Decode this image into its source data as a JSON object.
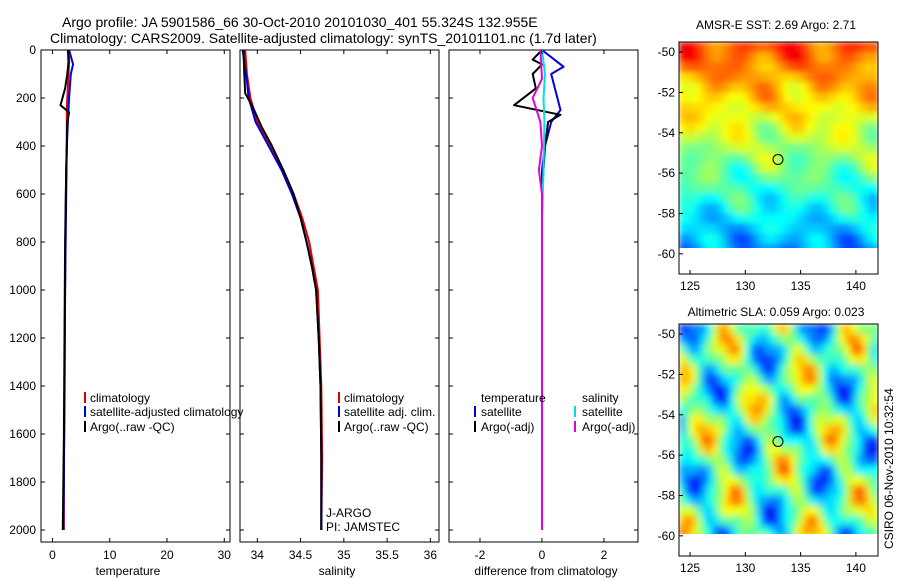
{
  "header": {
    "line1": "Argo profile: JA 5901586_66 30-Oct-2010 20101030_401 55.324S 132.955E",
    "line2": "Climatology: CARS2009. Satellite-adjusted climatology: synTS_20101101.nc (1.7d later)"
  },
  "colors": {
    "red": "#e00000",
    "blue": "#0000e0",
    "black": "#000000",
    "cyan": "#00e0e0",
    "magenta": "#e000e0"
  },
  "chart_data": [
    {
      "type": "line",
      "name": "temperature-profile",
      "xlabel": "temperature",
      "xlim": [
        -2,
        31
      ],
      "ylim": [
        2050,
        0
      ],
      "yticks": [
        0,
        200,
        400,
        600,
        800,
        1000,
        1200,
        1400,
        1600,
        1800,
        2000
      ],
      "xticks": [
        0,
        10,
        20,
        30
      ],
      "series": [
        {
          "name": "climatology",
          "color": "red",
          "points": [
            [
              2.9,
              0
            ],
            [
              2.9,
              50
            ],
            [
              2.8,
              100
            ],
            [
              2.7,
              150
            ],
            [
              2.6,
              200
            ],
            [
              2.5,
              250
            ],
            [
              2.5,
              300
            ],
            [
              2.5,
              400
            ],
            [
              2.4,
              500
            ],
            [
              2.3,
              700
            ],
            [
              2.2,
              1000
            ],
            [
              2.1,
              1500
            ],
            [
              2.0,
              1700
            ],
            [
              2.0,
              2000
            ]
          ]
        },
        {
          "name": "satellite-adjusted climatology",
          "color": "blue",
          "points": [
            [
              2.9,
              0
            ],
            [
              3.6,
              60
            ],
            [
              3.2,
              100
            ],
            [
              2.9,
              200
            ],
            [
              2.7,
              300
            ],
            [
              2.5,
              400
            ],
            [
              2.4,
              600
            ],
            [
              2.2,
              1000
            ],
            [
              2.1,
              1400
            ],
            [
              2.0,
              1800
            ],
            [
              1.9,
              2000
            ]
          ]
        },
        {
          "name": "Argo(..raw -QC)",
          "color": "black",
          "points": [
            [
              2.7,
              0
            ],
            [
              2.8,
              50
            ],
            [
              2.6,
              100
            ],
            [
              2.2,
              160
            ],
            [
              1.4,
              230
            ],
            [
              2.9,
              260
            ],
            [
              2.6,
              300
            ],
            [
              2.5,
              400
            ],
            [
              2.4,
              500
            ],
            [
              2.2,
              800
            ],
            [
              2.1,
              1200
            ],
            [
              2.0,
              1600
            ],
            [
              1.8,
              2000
            ]
          ]
        }
      ],
      "legend": [
        "climatology",
        "satellite-adjusted climatology",
        "Argo(..raw -QC)"
      ]
    },
    {
      "type": "line",
      "name": "salinity-profile",
      "xlabel": "salinity",
      "xlim": [
        33.8,
        36.1
      ],
      "ylim": [
        2050,
        0
      ],
      "xticks": [
        34,
        34.5,
        35,
        35.5,
        36
      ],
      "series": [
        {
          "name": "climatology",
          "color": "red",
          "points": [
            [
              33.86,
              0
            ],
            [
              33.88,
              100
            ],
            [
              33.92,
              200
            ],
            [
              34.0,
              300
            ],
            [
              34.15,
              400
            ],
            [
              34.3,
              500
            ],
            [
              34.42,
              600
            ],
            [
              34.52,
              700
            ],
            [
              34.6,
              800
            ],
            [
              34.65,
              900
            ],
            [
              34.7,
              1000
            ],
            [
              34.72,
              1200
            ],
            [
              34.74,
              1400
            ],
            [
              34.75,
              1700
            ],
            [
              34.74,
              2000
            ]
          ]
        },
        {
          "name": "satellite adj. clim.",
          "color": "blue",
          "points": [
            [
              33.83,
              0
            ],
            [
              33.87,
              100
            ],
            [
              33.9,
              200
            ],
            [
              33.98,
              300
            ],
            [
              34.13,
              400
            ],
            [
              34.28,
              500
            ],
            [
              34.4,
              600
            ],
            [
              34.5,
              700
            ],
            [
              34.57,
              800
            ],
            [
              34.63,
              900
            ],
            [
              34.68,
              1000
            ],
            [
              34.71,
              1200
            ],
            [
              34.73,
              1400
            ],
            [
              34.74,
              1700
            ],
            [
              34.74,
              2000
            ]
          ]
        },
        {
          "name": "Argo(..raw -QC)",
          "color": "black",
          "points": [
            [
              33.84,
              0
            ],
            [
              33.85,
              100
            ],
            [
              33.86,
              180
            ],
            [
              33.95,
              240
            ],
            [
              34.05,
              320
            ],
            [
              34.17,
              400
            ],
            [
              34.3,
              500
            ],
            [
              34.42,
              600
            ],
            [
              34.5,
              700
            ],
            [
              34.57,
              800
            ],
            [
              34.63,
              900
            ],
            [
              34.68,
              1000
            ],
            [
              34.71,
              1200
            ],
            [
              34.73,
              1400
            ],
            [
              34.74,
              1700
            ],
            [
              34.74,
              2000
            ]
          ]
        }
      ],
      "legend": [
        "climatology",
        "satellite adj. clim.",
        "Argo(..raw -QC)"
      ],
      "annotation": [
        "J-ARGO",
        "PI: JAMSTEC"
      ]
    },
    {
      "type": "line",
      "name": "difference-profile",
      "xlabel": "difference from climatology",
      "xlim": [
        -3,
        3.1
      ],
      "ylim": [
        2050,
        0
      ],
      "xticks": [
        -2,
        0,
        2
      ],
      "series": [
        {
          "name": "temperature satellite",
          "color": "blue",
          "points": [
            [
              0,
              0
            ],
            [
              0.4,
              40
            ],
            [
              0.7,
              70
            ],
            [
              0.3,
              100
            ],
            [
              0.4,
              150
            ],
            [
              0.6,
              250
            ],
            [
              0.3,
              300
            ],
            [
              0.1,
              400
            ],
            [
              0,
              500
            ],
            [
              0,
              1000
            ],
            [
              0,
              2000
            ]
          ]
        },
        {
          "name": "temperature Argo(-adj)",
          "color": "black",
          "points": [
            [
              0,
              0
            ],
            [
              -0.3,
              40
            ],
            [
              0,
              60
            ],
            [
              -0.3,
              100
            ],
            [
              -0.2,
              160
            ],
            [
              -0.9,
              230
            ],
            [
              0.6,
              270
            ],
            [
              0.2,
              300
            ],
            [
              0.1,
              400
            ],
            [
              0,
              600
            ],
            [
              0,
              1000
            ],
            [
              0,
              2000
            ]
          ]
        },
        {
          "name": "salinity satellite",
          "color": "cyan",
          "points": [
            [
              0,
              0
            ],
            [
              0.1,
              100
            ],
            [
              0.05,
              200
            ],
            [
              0.08,
              300
            ],
            [
              0.05,
              500
            ],
            [
              0,
              700
            ],
            [
              0,
              1200
            ],
            [
              0,
              2000
            ]
          ]
        },
        {
          "name": "salinity Argo(-adj)",
          "color": "magenta",
          "points": [
            [
              -0.05,
              0
            ],
            [
              0,
              120
            ],
            [
              -0.3,
              200
            ],
            [
              -0.05,
              300
            ],
            [
              0,
              400
            ],
            [
              -0.1,
              500
            ],
            [
              0,
              600
            ],
            [
              0,
              2000
            ]
          ]
        }
      ],
      "legend": {
        "temperature_header": "temperature",
        "salinity_header": "salinity",
        "temperature_items": [
          "satellite",
          "Argo(-adj)"
        ],
        "salinity_items": [
          "satellite",
          "Argo(-adj)"
        ]
      }
    },
    {
      "type": "heatmap",
      "name": "sst-map",
      "title": "AMSR-E SST: 2.69  Argo: 2.71",
      "xticks": [
        125,
        130,
        135,
        140
      ],
      "yticks": [
        -50,
        -52,
        -54,
        -56,
        -58,
        -60
      ],
      "xlim": [
        124,
        142
      ],
      "ylim": [
        -61,
        -49.5
      ],
      "marker": [
        132.955,
        -55.324
      ]
    },
    {
      "type": "heatmap",
      "name": "sla-map",
      "title": "Altimetric SLA: 0.059  Argo: 0.023",
      "xticks": [
        125,
        130,
        135,
        140
      ],
      "yticks": [
        -50,
        -52,
        -54,
        -56,
        -58,
        -60
      ],
      "xlim": [
        124,
        142
      ],
      "ylim": [
        -61,
        -49.5
      ],
      "marker": [
        132.955,
        -55.324
      ]
    }
  ],
  "footer": {
    "credit": "CSIRO 06-Nov-2010 10:32:54"
  }
}
